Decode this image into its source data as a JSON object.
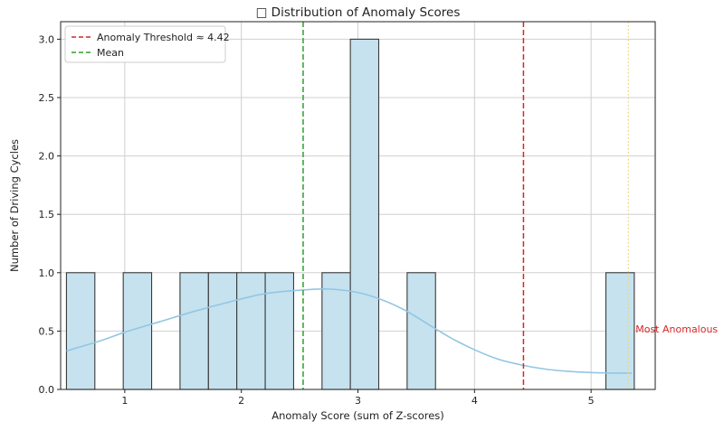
{
  "chart_data": {
    "type": "histogram",
    "title": "□ Distribution of Anomaly Scores",
    "xlabel": "Anomaly Score (sum of Z-scores)",
    "ylabel": "Number of Driving Cycles",
    "xlim": [
      0.45,
      5.55
    ],
    "ylim": [
      0,
      3.15
    ],
    "xticks": [
      1,
      2,
      3,
      4,
      5
    ],
    "yticks": [
      0.0,
      0.5,
      1.0,
      1.5,
      2.0,
      2.5,
      3.0
    ],
    "ytick_labels": [
      "0.0",
      "0.5",
      "1.0",
      "1.5",
      "2.0",
      "2.5",
      "3.0"
    ],
    "grid": true,
    "bin_start": 0.5,
    "bin_width": 0.2435,
    "bins": [
      {
        "x0": 0.5,
        "count": 1
      },
      {
        "x0": 0.744,
        "count": 0
      },
      {
        "x0": 0.987,
        "count": 1
      },
      {
        "x0": 1.231,
        "count": 0
      },
      {
        "x0": 1.474,
        "count": 1
      },
      {
        "x0": 1.718,
        "count": 1
      },
      {
        "x0": 1.961,
        "count": 1
      },
      {
        "x0": 2.205,
        "count": 1
      },
      {
        "x0": 2.448,
        "count": 0
      },
      {
        "x0": 2.692,
        "count": 1
      },
      {
        "x0": 2.935,
        "count": 3
      },
      {
        "x0": 3.179,
        "count": 0
      },
      {
        "x0": 3.422,
        "count": 1
      },
      {
        "x0": 3.666,
        "count": 0
      },
      {
        "x0": 3.909,
        "count": 0
      },
      {
        "x0": 4.153,
        "count": 0
      },
      {
        "x0": 4.396,
        "count": 0
      },
      {
        "x0": 4.64,
        "count": 0
      },
      {
        "x0": 4.883,
        "count": 0
      },
      {
        "x0": 5.127,
        "count": 1
      }
    ],
    "kde": {
      "x": [
        0.5,
        0.8,
        1.0,
        1.3,
        1.6,
        1.9,
        2.2,
        2.5,
        2.75,
        3.0,
        3.2,
        3.4,
        3.6,
        3.8,
        4.0,
        4.2,
        4.4,
        4.6,
        4.8,
        5.0,
        5.2,
        5.35
      ],
      "y": [
        0.33,
        0.42,
        0.49,
        0.58,
        0.67,
        0.75,
        0.82,
        0.85,
        0.86,
        0.83,
        0.77,
        0.68,
        0.56,
        0.44,
        0.34,
        0.26,
        0.21,
        0.175,
        0.155,
        0.145,
        0.14,
        0.14
      ]
    },
    "threshold": {
      "value": 4.42,
      "label": "Anomaly Threshold ≈ 4.42",
      "color": "#d62728"
    },
    "mean": {
      "value": 2.53,
      "label": "Mean",
      "color": "#2ca02c"
    },
    "max_marker": {
      "value": 5.32,
      "color": "#e8d77a"
    },
    "annotation": {
      "text": "Most Anomalous",
      "x": 5.35,
      "y": 0.52,
      "color": "#d62728"
    },
    "colors": {
      "bar_fill": "#c6e2ef",
      "bar_edge": "#3a3a3a",
      "kde": "#92c6e3",
      "grid": "#d0d0d0"
    },
    "legend_position": "top-left"
  }
}
